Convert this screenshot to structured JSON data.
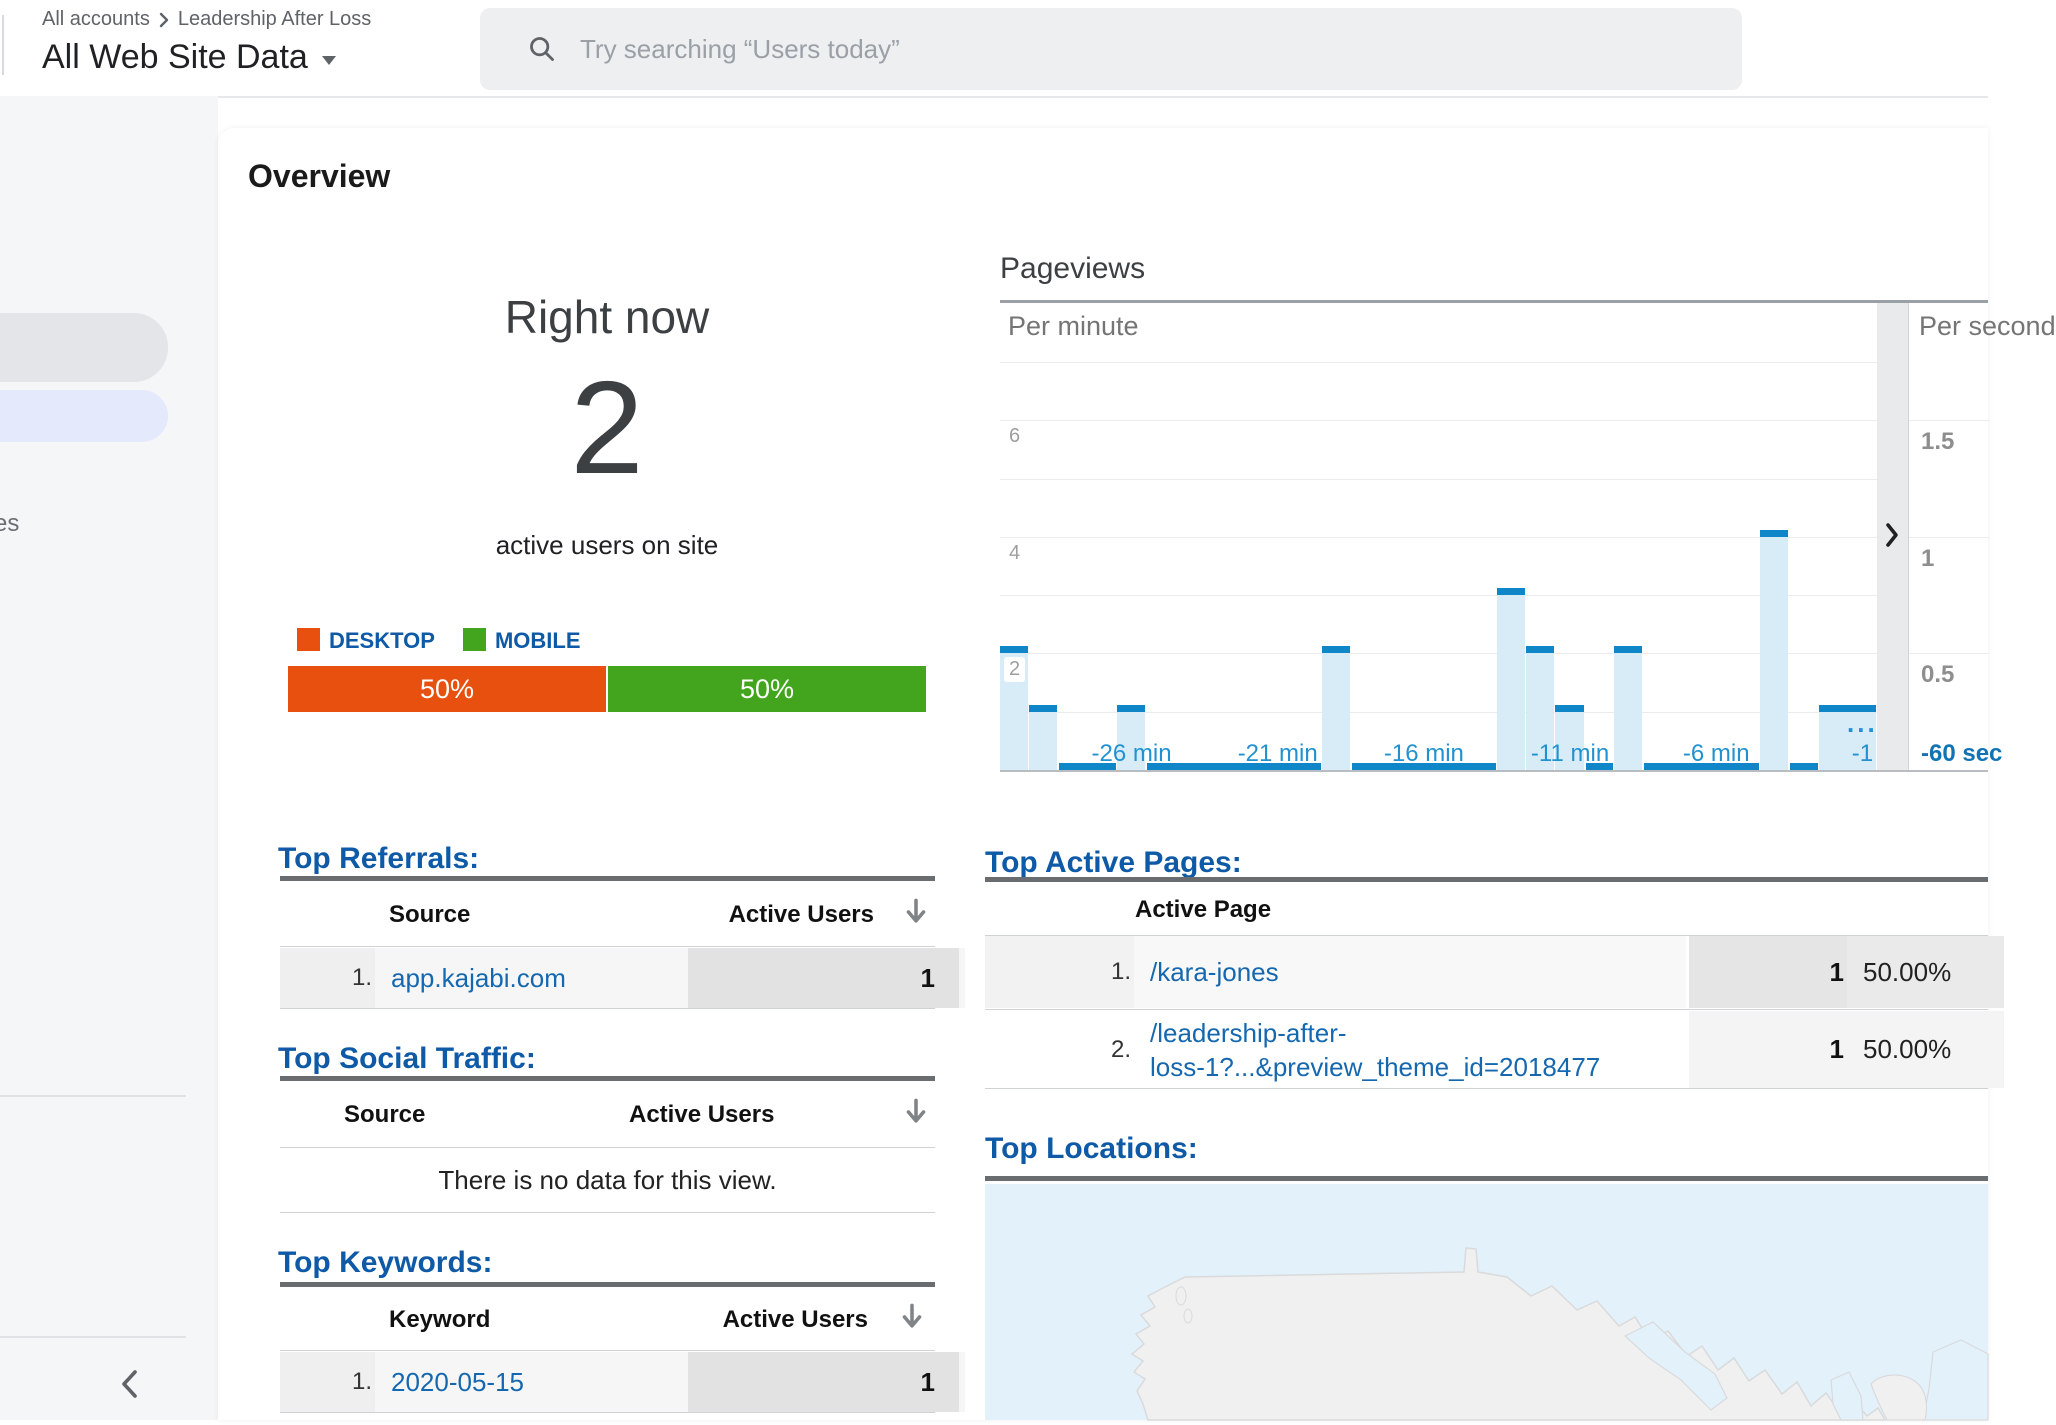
{
  "header": {
    "breadcrumb_1": "All accounts",
    "breadcrumb_2": "Leadership After Loss",
    "property_title": "All Web Site Data",
    "search_placeholder": "Try searching “Users today”"
  },
  "sidebar": {
    "partial_label": "es"
  },
  "page": {
    "title": "Overview"
  },
  "right_now": {
    "heading": "Right now",
    "value": "2",
    "subtitle": "active users on site",
    "legend": [
      {
        "label": "DESKTOP",
        "color": "#e8500f"
      },
      {
        "label": "MOBILE",
        "color": "#43a51d"
      }
    ],
    "split": [
      {
        "label": "50%",
        "pct": 50,
        "color": "#e8500f"
      },
      {
        "label": "50%",
        "pct": 50,
        "color": "#43a51d"
      }
    ]
  },
  "chart_data": {
    "type": "bar",
    "title": "Pageviews",
    "per_minute": {
      "label": "Per minute",
      "ylim": [
        0,
        8
      ],
      "gridline_values": [
        1,
        2,
        3,
        4,
        5,
        6,
        7
      ],
      "labeled_gridlines": [
        2,
        4,
        6
      ],
      "bars": [
        {
          "minute": -30,
          "value": 2
        },
        {
          "minute": -29,
          "value": 1
        },
        {
          "minute": -26,
          "value": 1
        },
        {
          "minute": -19,
          "value": 2
        },
        {
          "minute": -13,
          "value": 3
        },
        {
          "minute": -12,
          "value": 2
        },
        {
          "minute": -11,
          "value": 1
        },
        {
          "minute": -9,
          "value": 2
        },
        {
          "minute": -4,
          "value": 4
        },
        {
          "minute": -1,
          "value": 1,
          "wide": true,
          "annotation": "..."
        }
      ],
      "ticks": [
        {
          "slot": 4,
          "label": "-26 min"
        },
        {
          "slot": 9,
          "label": "-21 min"
        },
        {
          "slot": 14,
          "label": "-16 min"
        },
        {
          "slot": 19,
          "label": "-11 min"
        },
        {
          "slot": 24,
          "label": "-6 min"
        },
        {
          "slot": 29,
          "label": "-1"
        }
      ]
    },
    "per_second": {
      "label": "Per second",
      "ylim": [
        0,
        2
      ],
      "gridlines": [
        {
          "v": 1.5,
          "label": "1.5"
        },
        {
          "v": 1.0,
          "label": "1"
        },
        {
          "v": 0.5,
          "label": "0.5"
        }
      ],
      "x_axis_label": "-60 sec",
      "bars": []
    }
  },
  "tables": {
    "top_referrals": {
      "title": "Top Referrals:",
      "col_name": "Source",
      "col_value": "Active Users",
      "rows": [
        {
          "rank": "1.",
          "name": "app.kajabi.com",
          "value": "1"
        }
      ]
    },
    "top_social": {
      "title": "Top Social Traffic:",
      "col_name": "Source",
      "col_value": "Active Users",
      "empty_message": "There is no data for this view."
    },
    "top_keywords": {
      "title": "Top Keywords:",
      "col_name": "Keyword",
      "col_value": "Active Users",
      "rows": [
        {
          "rank": "1.",
          "name": "2020-05-15",
          "value": "1"
        }
      ]
    },
    "top_active_pages": {
      "title": "Top Active Pages:",
      "col_name": "Active Page",
      "rows": [
        {
          "rank": "1.",
          "name_line1": "/kara-jones",
          "name_line2": "",
          "value": "1",
          "pct": "50.00%"
        },
        {
          "rank": "2.",
          "name_line1": "/leadership-after-",
          "name_line2": "loss-1?...&preview_theme_id=2018477",
          "value": "1",
          "pct": "50.00%"
        }
      ]
    },
    "top_locations": {
      "title": "Top Locations:"
    }
  }
}
